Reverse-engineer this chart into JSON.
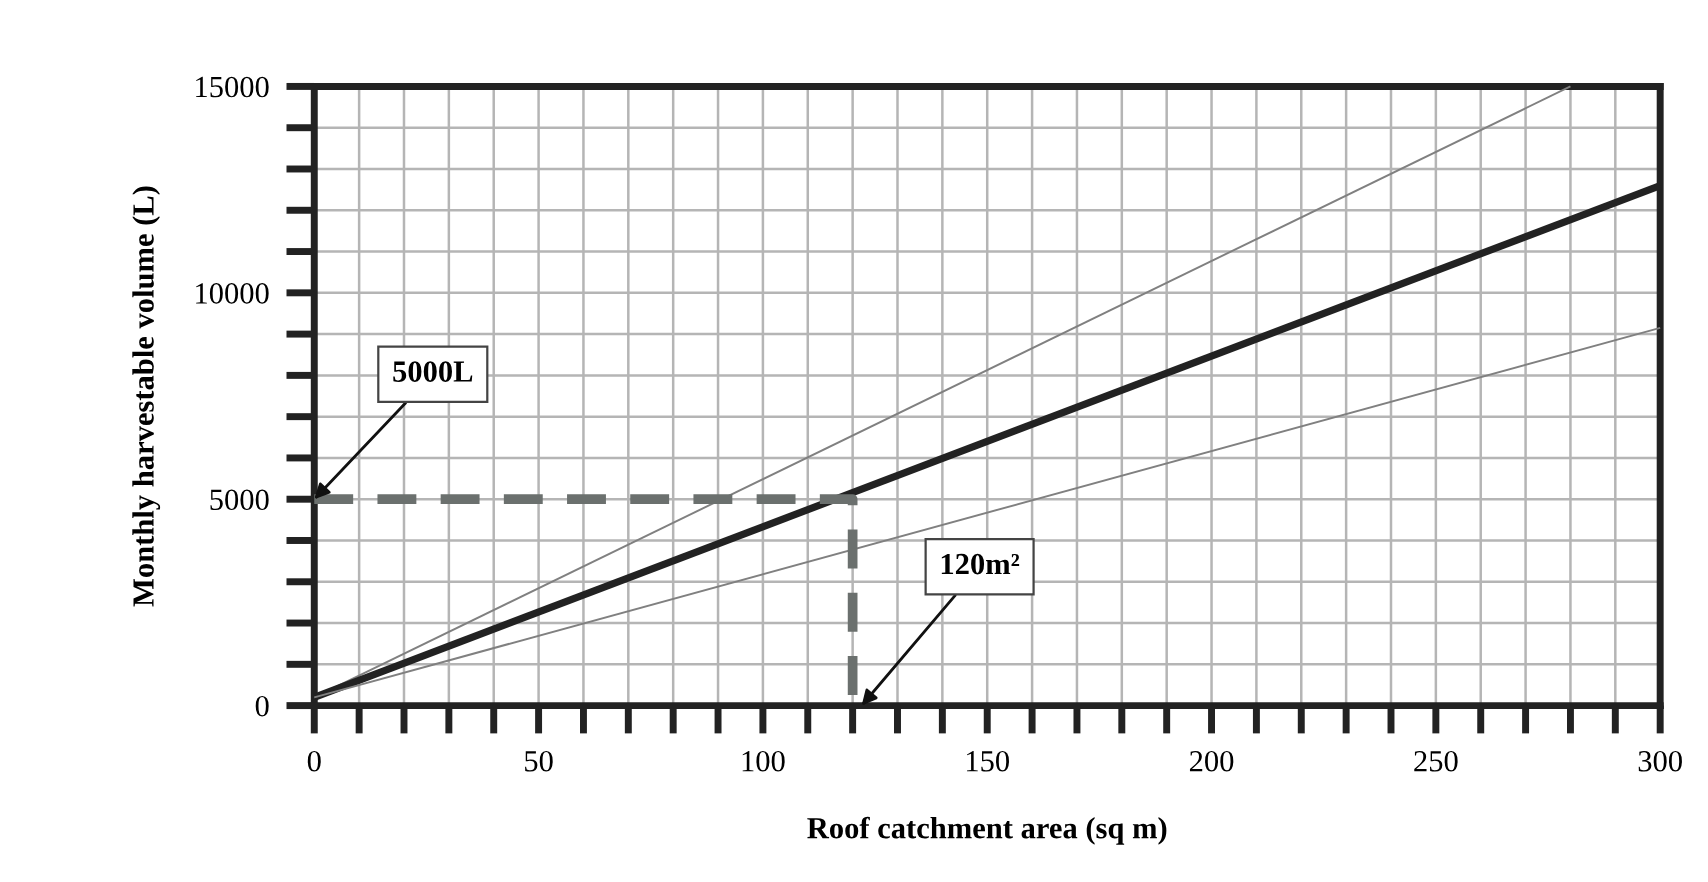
{
  "chart_data": {
    "type": "line",
    "xlabel": "Roof catchment area (sq m)",
    "ylabel": "Monthly harvestable volume (L)",
    "xlim": [
      0,
      300
    ],
    "ylim": [
      0,
      15000
    ],
    "xticks": [
      0,
      {
        "value": 10,
        "label": null
      },
      {
        "value": 20,
        "label": null
      },
      {
        "value": 30,
        "label": null
      },
      {
        "value": 40,
        "label": null
      },
      50,
      {
        "value": 60,
        "label": null
      },
      {
        "value": 70,
        "label": null
      },
      {
        "value": 80,
        "label": null
      },
      {
        "value": 90,
        "label": null
      },
      100,
      {
        "value": 110,
        "label": null
      },
      {
        "value": 120,
        "label": null
      },
      {
        "value": 130,
        "label": null
      },
      {
        "value": 140,
        "label": null
      },
      150,
      {
        "value": 160,
        "label": null
      },
      {
        "value": 170,
        "label": null
      },
      {
        "value": 180,
        "label": null
      },
      {
        "value": 190,
        "label": null
      },
      200,
      {
        "value": 210,
        "label": null
      },
      {
        "value": 220,
        "label": null
      },
      {
        "value": 230,
        "label": null
      },
      {
        "value": 240,
        "label": null
      },
      250,
      {
        "value": 260,
        "label": null
      },
      {
        "value": 270,
        "label": null
      },
      {
        "value": 280,
        "label": null
      },
      {
        "value": 290,
        "label": null
      },
      300
    ],
    "yticks": [
      0,
      {
        "value": 1000,
        "label": null
      },
      {
        "value": 2000,
        "label": null
      },
      {
        "value": 3000,
        "label": null
      },
      {
        "value": 4000,
        "label": null
      },
      5000,
      {
        "value": 6000,
        "label": null
      },
      {
        "value": 7000,
        "label": null
      },
      {
        "value": 8000,
        "label": null
      },
      {
        "value": 9000,
        "label": null
      },
      10000,
      {
        "value": 11000,
        "label": null
      },
      {
        "value": 12000,
        "label": null
      },
      {
        "value": 13000,
        "label": null
      },
      {
        "value": 14000,
        "label": null
      },
      15000
    ],
    "grid": true,
    "marker": "none",
    "series": [
      {
        "x": [
          0,
          280
        ],
        "values": [
          200,
          15000
        ],
        "color": "#808080",
        "line_style": "solid"
      },
      {
        "x": [
          0,
          300
        ],
        "values": [
          200,
          12600
        ],
        "color": "#222222",
        "line_style": "solid"
      },
      {
        "x": [
          0,
          300
        ],
        "values": [
          200,
          9150
        ],
        "color": "#808080",
        "line_style": "solid"
      },
      {
        "x": [
          0,
          120,
          120
        ],
        "values": [
          5000,
          5000,
          0
        ],
        "color": "#6b706e",
        "line_style": "dashed"
      }
    ],
    "annotations": [
      {
        "text": "5000L",
        "x": 0,
        "y": 5000
      },
      {
        "text": "120m²",
        "x": 122,
        "y": 0
      }
    ]
  }
}
